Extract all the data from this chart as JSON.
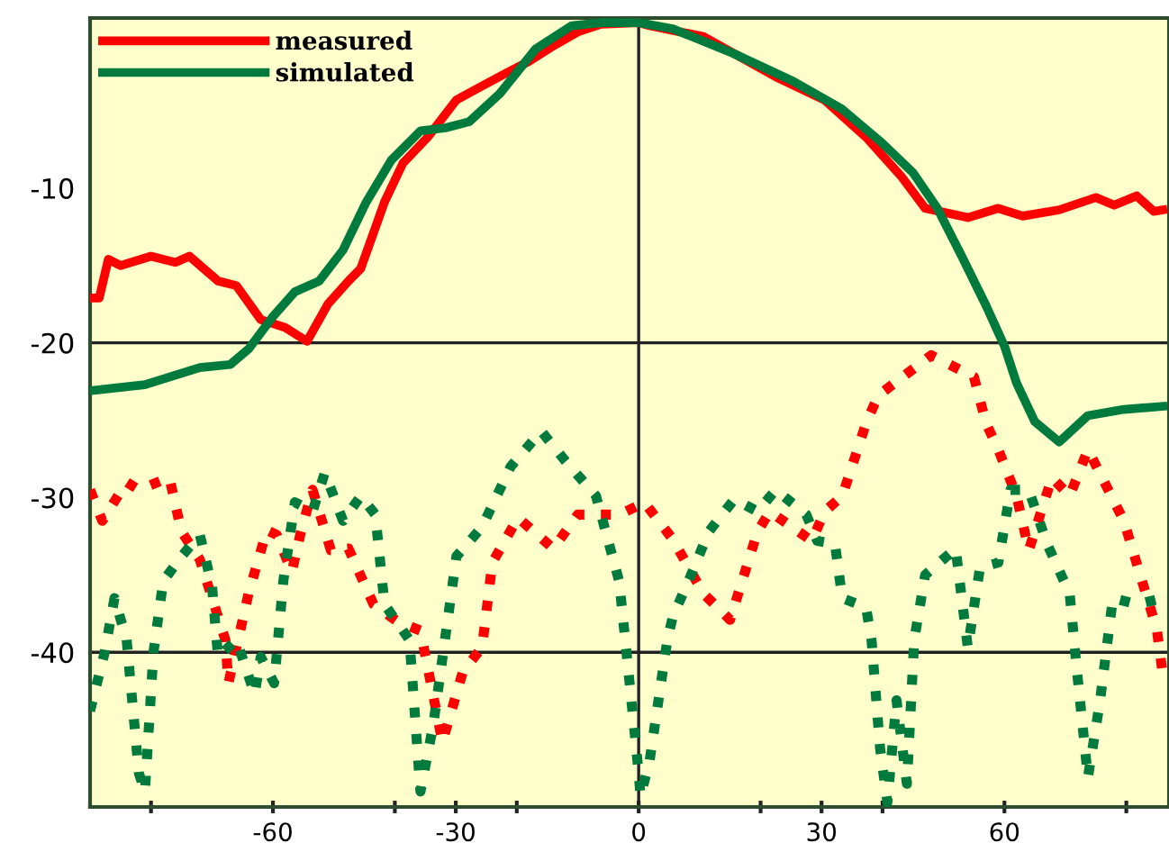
{
  "chart_data": {
    "type": "line",
    "xlim": [
      -90,
      87
    ],
    "ylim": [
      -50,
      1
    ],
    "xticks": [
      {
        "value": -80,
        "label": null
      },
      {
        "value": -60,
        "label": "-60"
      },
      {
        "value": -40,
        "label": null
      },
      {
        "value": -30,
        "label": "-30"
      },
      {
        "value": -20,
        "label": null
      },
      {
        "value": 0,
        "label": "0"
      },
      {
        "value": 20,
        "label": null
      },
      {
        "value": 30,
        "label": "30"
      },
      {
        "value": 40,
        "label": null
      },
      {
        "value": 60,
        "label": "60"
      },
      {
        "value": 80,
        "label": null
      }
    ],
    "yticks": [
      -10,
      -20,
      -30,
      -40
    ],
    "ref_lines": [
      {
        "axis": "x",
        "value": 0
      },
      {
        "axis": "y",
        "value": -20
      },
      {
        "axis": "y",
        "value": -40
      }
    ],
    "grid": false,
    "legend": "top left",
    "marker": "none",
    "series": [
      {
        "name": "measured",
        "color": "#ff0000",
        "line_style": "solid",
        "x": [
          -90,
          -88.5,
          -87,
          -85,
          -80,
          -76,
          -73.7,
          -69,
          -66,
          -62,
          -58,
          -54.4,
          -51,
          -47.6,
          -45.6,
          -41.7,
          -38.7,
          -34.6,
          -29.9,
          -25.7,
          -21.9,
          -18,
          -14,
          -10,
          -6.2,
          0,
          1.8,
          10.6,
          22.5,
          30.5,
          37.3,
          43,
          47,
          54,
          59,
          63,
          69,
          75,
          78,
          81.7,
          84.5,
          86
        ],
        "values": [
          -17.1,
          -17.1,
          -14.6,
          -15,
          -14.4,
          -14.8,
          -14.4,
          -16,
          -16.3,
          -18.5,
          -19,
          -19.9,
          -17.5,
          -16,
          -15.2,
          -10.9,
          -8.4,
          -6.7,
          -4.3,
          -3.4,
          -2.6,
          -1.8,
          -0.8,
          0.1,
          0.6,
          0.7,
          0.5,
          -0.2,
          -2.8,
          -4.3,
          -6.7,
          -9.2,
          -11.3,
          -11.9,
          -11.3,
          -11.8,
          -11.4,
          -10.6,
          -11.1,
          -10.5,
          -11.5,
          -11.4
        ]
      },
      {
        "name": "simulated",
        "color": "#007a3d",
        "line_style": "solid",
        "x": [
          -90,
          -81,
          -72,
          -67,
          -64,
          -60,
          -56.4,
          -52.4,
          -48.5,
          -44.7,
          -40.6,
          -35.8,
          -31.7,
          -27.8,
          -22.8,
          -16.9,
          -11,
          -6,
          0,
          5.6,
          15.6,
          25.4,
          33.4,
          40,
          45,
          49,
          53,
          57,
          60,
          62,
          65,
          69,
          73.7,
          79.6,
          86
        ],
        "values": [
          -23.1,
          -22.7,
          -21.6,
          -21.4,
          -20.4,
          -18.3,
          -16.7,
          -16,
          -14,
          -10.9,
          -8.2,
          -6.3,
          -6.1,
          -5.7,
          -3.9,
          -1,
          0.5,
          0.7,
          0.7,
          0.3,
          -1.3,
          -3.1,
          -4.9,
          -7.1,
          -9,
          -11.3,
          -14.4,
          -17.6,
          -20.2,
          -22.6,
          -25.1,
          -26.4,
          -24.7,
          -24.3,
          -24.1
        ]
      },
      {
        "color": "#ff0000",
        "line_style": "dotted",
        "x": [
          -90,
          -88,
          -84,
          -82,
          -77,
          -75,
          -72,
          -67.8,
          -67.3,
          -64,
          -61,
          -59.4,
          -56.9,
          -55.4,
          -53.5,
          -50.5,
          -47.6,
          -43.5,
          -39.6,
          -35.8,
          -32.2,
          -28.8,
          -25.7,
          -24,
          -19.8,
          -14,
          -10,
          -6.2,
          -3.2,
          0,
          0.9,
          5.6,
          10.6,
          15,
          19.5,
          21.5,
          28.4,
          30.5,
          33.4,
          37.3,
          39.3,
          48,
          55,
          57,
          59,
          62,
          64,
          67.8,
          70.7,
          73.7,
          79.6,
          82.5,
          85,
          86
        ],
        "values": [
          -29.5,
          -31.5,
          -29,
          -29.5,
          -28.7,
          -32.2,
          -34,
          -39.2,
          -42,
          -36.2,
          -32.1,
          -32.4,
          -34.8,
          -32.2,
          -29.5,
          -33.4,
          -33.3,
          -36.9,
          -38,
          -38.6,
          -45.8,
          -41.2,
          -39.7,
          -34.2,
          -31.3,
          -33.3,
          -31.1,
          -31.1,
          -31.1,
          -30.5,
          -30.3,
          -32.7,
          -36.2,
          -37.9,
          -32.2,
          -30.9,
          -32.8,
          -30.9,
          -29.9,
          -25.2,
          -23.4,
          -20.8,
          -22.2,
          -25.2,
          -26.9,
          -29.9,
          -33.4,
          -28.7,
          -29.9,
          -26.9,
          -31.5,
          -35.3,
          -38.5,
          -41.5
        ]
      },
      {
        "color": "#007a3d",
        "line_style": "dotted",
        "x": [
          -90,
          -87.6,
          -86,
          -84,
          -82,
          -81,
          -79.6,
          -78,
          -75,
          -72,
          -70,
          -69,
          -66,
          -63,
          -62,
          -59.8,
          -58.3,
          -56.4,
          -53.5,
          -51.5,
          -48.5,
          -45.6,
          -43.2,
          -41.7,
          -37.6,
          -35.8,
          -33.7,
          -29.9,
          -25.7,
          -21,
          -16,
          -12.1,
          -7,
          -3.2,
          -2,
          0,
          0.3,
          1.8,
          4.7,
          5.6,
          8.6,
          11.5,
          15.7,
          19.5,
          22.5,
          27.5,
          29.3,
          32.2,
          33.4,
          37.3,
          38.2,
          39.6,
          40.8,
          42.3,
          44,
          45.2,
          47,
          52,
          54,
          56,
          59,
          61,
          64,
          67,
          70.7,
          71.9,
          73.7,
          75.7,
          77.8,
          81.7,
          86
        ],
        "values": [
          -43.8,
          -40,
          -36.5,
          -39.2,
          -47.8,
          -49,
          -40,
          -35.4,
          -33.8,
          -32.4,
          -35.7,
          -40.3,
          -39.2,
          -42.7,
          -40.3,
          -42,
          -35.4,
          -30.3,
          -30.9,
          -28.4,
          -31.5,
          -29.9,
          -31.1,
          -36.9,
          -39.2,
          -49,
          -44.7,
          -33.8,
          -31.9,
          -28,
          -25.7,
          -27.6,
          -29.9,
          -35.4,
          -40,
          -47.8,
          -49.3,
          -47,
          -39.2,
          -37.7,
          -35,
          -32.2,
          -30.1,
          -30.9,
          -29.5,
          -31.1,
          -32.8,
          -33,
          -36.5,
          -37.1,
          -39.2,
          -46.2,
          -49.7,
          -43.1,
          -48.5,
          -39.2,
          -35,
          -33.3,
          -39.7,
          -34.5,
          -34.2,
          -29.5,
          -29.5,
          -33,
          -36.2,
          -41.2,
          -48.1,
          -43.1,
          -36.5,
          -36.9,
          -36.5
        ]
      }
    ]
  }
}
